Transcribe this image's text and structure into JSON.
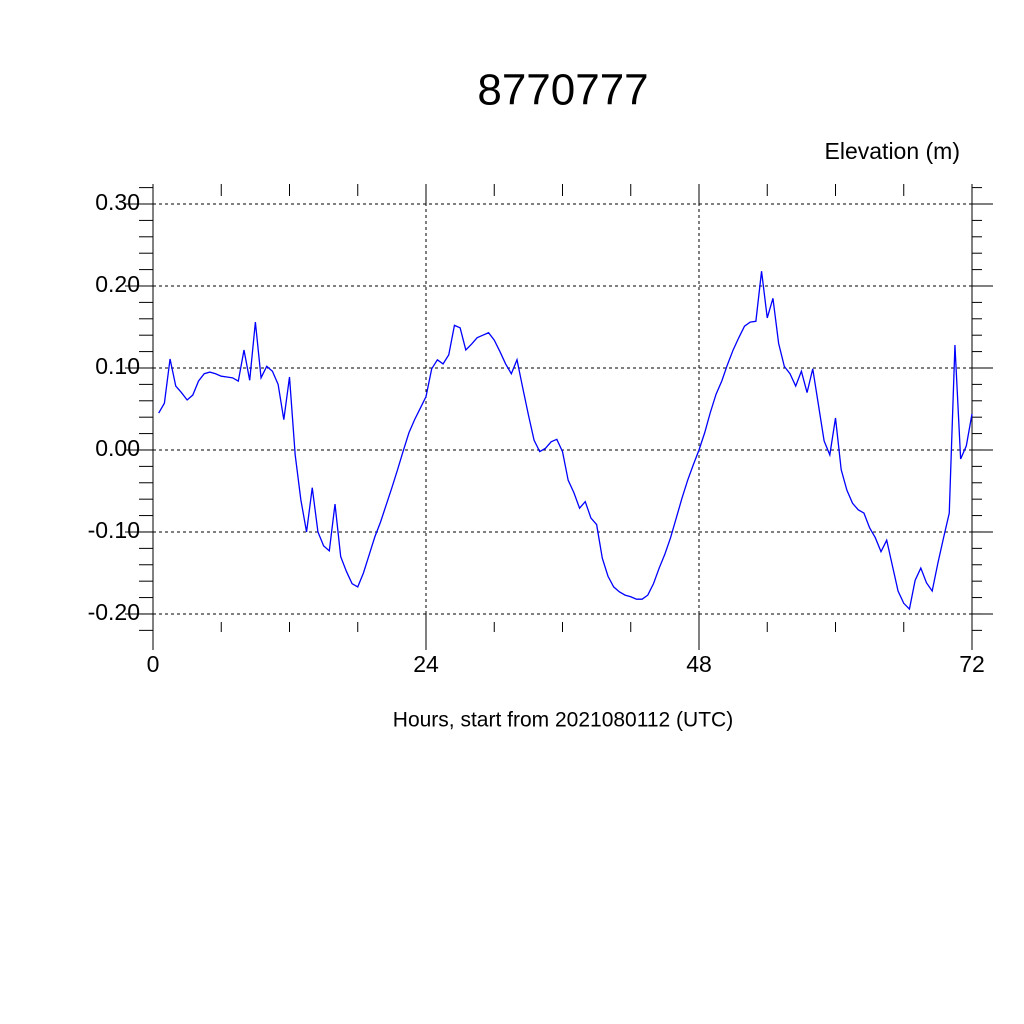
{
  "chart_data": {
    "type": "line",
    "title": "8770777",
    "subtitle": "Elevation (m)",
    "x_label": "Hours, start from 2021080112 (UTC)",
    "xlim": [
      0,
      72
    ],
    "xticks": [
      0,
      24,
      48,
      72
    ],
    "ylim": [
      -0.222,
      0.3244
    ],
    "yticks": [
      {
        "value": 0.3,
        "label": "0.30"
      },
      {
        "value": 0.2,
        "label": "0.20"
      },
      {
        "value": 0.1,
        "label": "0.10"
      },
      {
        "value": 0,
        "label": "0.00"
      },
      {
        "value": -0.1,
        "label": "-0.10"
      },
      {
        "value": -0.2,
        "label": "-0.20"
      }
    ],
    "grid": true,
    "series": [
      {
        "color": "#0000ff",
        "x": [
          0.5,
          1,
          1.5,
          2,
          2.5,
          3,
          3.5,
          4,
          4.5,
          5,
          5.5,
          6,
          6.5,
          7,
          7.5,
          8,
          8.5,
          9,
          9.5,
          10,
          10.5,
          11,
          11.5,
          12,
          12.5,
          13,
          13.5,
          14,
          14.5,
          15,
          15.5,
          16,
          16.5,
          17,
          17.5,
          18,
          18.5,
          19,
          19.5,
          20,
          20.5,
          21,
          21.5,
          22,
          22.5,
          23,
          23.5,
          24,
          24.5,
          25,
          25.5,
          26,
          26.5,
          27,
          27.5,
          28,
          28.5,
          29,
          29.5,
          30,
          30.5,
          31,
          31.5,
          32,
          32.5,
          33,
          33.5,
          34,
          34.5,
          35,
          35.5,
          36,
          36.5,
          37,
          37.5,
          38,
          38.5,
          39,
          39.5,
          40,
          40.5,
          41,
          41.5,
          42,
          42.5,
          43,
          43.5,
          44,
          44.5,
          45,
          45.5,
          46,
          46.5,
          47,
          47.5,
          48,
          48.5,
          49,
          49.5,
          50,
          50.5,
          51,
          51.5,
          52,
          52.5,
          53,
          53.5,
          54,
          54.5,
          55,
          55.5,
          56,
          56.5,
          57,
          57.5,
          58,
          58.5,
          59,
          59.5,
          60,
          60.5,
          61,
          61.5,
          62,
          62.5,
          63,
          63.5,
          64,
          64.5,
          65,
          65.5,
          66,
          66.5,
          67,
          67.5,
          68,
          68.5,
          69,
          69.5,
          70,
          70.5,
          71,
          71.5,
          72
        ],
        "values": [
          0.045,
          0.057,
          0.111,
          0.078,
          0.07,
          0.061,
          0.067,
          0.084,
          0.093,
          0.095,
          0.093,
          0.09,
          0.089,
          0.088,
          0.084,
          0.122,
          0.085,
          0.156,
          0.088,
          0.102,
          0.096,
          0.08,
          0.037,
          0.089,
          -0.006,
          -0.061,
          -0.1,
          -0.046,
          -0.1,
          -0.117,
          -0.123,
          -0.066,
          -0.13,
          -0.148,
          -0.163,
          -0.167,
          -0.15,
          -0.128,
          -0.106,
          -0.088,
          -0.067,
          -0.046,
          -0.024,
          -0.001,
          0.021,
          0.037,
          0.051,
          0.065,
          0.099,
          0.11,
          0.105,
          0.116,
          0.152,
          0.149,
          0.122,
          0.129,
          0.137,
          0.14,
          0.143,
          0.134,
          0.12,
          0.105,
          0.093,
          0.11,
          0.076,
          0.043,
          0.012,
          -0.002,
          0.002,
          0.01,
          0.013,
          -0.002,
          -0.037,
          -0.052,
          -0.071,
          -0.063,
          -0.083,
          -0.091,
          -0.132,
          -0.154,
          -0.167,
          -0.173,
          -0.177,
          -0.179,
          -0.182,
          -0.182,
          -0.177,
          -0.163,
          -0.144,
          -0.127,
          -0.107,
          -0.083,
          -0.059,
          -0.037,
          -0.018,
          0,
          0.021,
          0.046,
          0.068,
          0.084,
          0.104,
          0.122,
          0.137,
          0.151,
          0.156,
          0.157,
          0.218,
          0.161,
          0.185,
          0.13,
          0.102,
          0.093,
          0.078,
          0.096,
          0.07,
          0.099,
          0.055,
          0.011,
          -0.006,
          0.039,
          -0.024,
          -0.049,
          -0.065,
          -0.073,
          -0.077,
          -0.095,
          -0.107,
          -0.124,
          -0.11,
          -0.141,
          -0.172,
          -0.187,
          -0.194,
          -0.159,
          -0.144,
          -0.162,
          -0.172,
          -0.138,
          -0.107,
          -0.077,
          0.128,
          -0.011,
          0.005,
          0.044
        ]
      }
    ]
  }
}
